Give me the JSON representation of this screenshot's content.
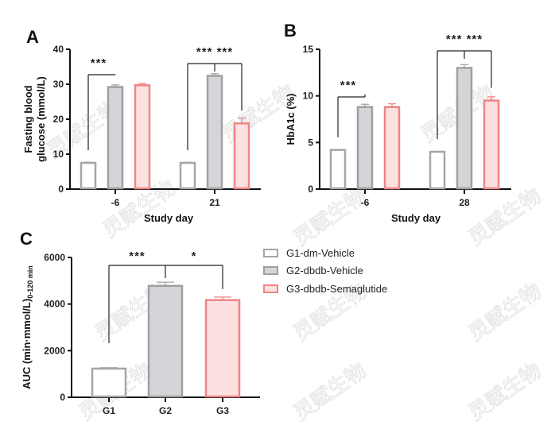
{
  "legend": {
    "items": [
      {
        "label": "G1-dm-Vehicle",
        "fill": "#ffffff",
        "stroke": "#a6a6a6"
      },
      {
        "label": "G2-dbdb-Vehicle",
        "fill": "#d3d5d8",
        "stroke": "#a0a0a0"
      },
      {
        "label": "G3-dbdb-Semaglutide",
        "fill": "#fde0e0",
        "stroke": "#ee8585"
      }
    ]
  },
  "watermark_text": "灵赋生物",
  "chart_data": [
    {
      "panel": "A",
      "type": "bar",
      "title": "",
      "xlabel": "Study day",
      "ylabel": "Fasting blood glucose (mmol/L)",
      "ylabel_lines": [
        "Fasting blood",
        "glucose (mmol/L)"
      ],
      "ylim": [
        0,
        40
      ],
      "yticks": [
        0,
        10,
        20,
        30,
        40
      ],
      "categories": [
        "-6",
        "21"
      ],
      "series": [
        {
          "name": "G1-dm-Vehicle",
          "values": [
            7.5,
            7.5
          ],
          "errors": [
            0.2,
            0.2
          ]
        },
        {
          "name": "G2-dbdb-Vehicle",
          "values": [
            29.2,
            32.4
          ],
          "errors": [
            0.6,
            0.6
          ]
        },
        {
          "name": "G3-dbdb-Semaglutide",
          "values": [
            29.7,
            18.8
          ],
          "errors": [
            0.5,
            1.5
          ]
        }
      ],
      "significance": [
        {
          "category": "-6",
          "from": 0,
          "to": 1,
          "label": "***"
        },
        {
          "category": "21",
          "from": 0,
          "to": 1,
          "label": "***"
        },
        {
          "category": "21",
          "from": 1,
          "to": 2,
          "label": "***"
        }
      ]
    },
    {
      "panel": "B",
      "type": "bar",
      "title": "",
      "xlabel": "Study day",
      "ylabel": "HbA1c (%)",
      "ylabel_lines": [
        "HbA1c (%)"
      ],
      "ylim": [
        0,
        15
      ],
      "yticks": [
        0,
        5,
        10,
        15
      ],
      "categories": [
        "-6",
        "28"
      ],
      "series": [
        {
          "name": "G1-dm-Vehicle",
          "values": [
            4.2,
            4.0
          ],
          "errors": [
            0.05,
            0.05
          ]
        },
        {
          "name": "G2-dbdb-Vehicle",
          "values": [
            8.8,
            13.0
          ],
          "errors": [
            0.3,
            0.35
          ]
        },
        {
          "name": "G3-dbdb-Semaglutide",
          "values": [
            8.8,
            9.5
          ],
          "errors": [
            0.35,
            0.4
          ]
        }
      ],
      "significance": [
        {
          "category": "-6",
          "from": 0,
          "to": 1,
          "label": "***"
        },
        {
          "category": "28",
          "from": 0,
          "to": 1,
          "label": "***"
        },
        {
          "category": "28",
          "from": 1,
          "to": 2,
          "label": "***"
        }
      ]
    },
    {
      "panel": "C",
      "type": "bar",
      "title": "",
      "xlabel": "",
      "ylabel": "AUC (min·mmol/L)0-120 min",
      "ylabel_main": "AUC (min·mmol/L)",
      "ylabel_sub": "0-120 min",
      "ylim": [
        0,
        6000
      ],
      "yticks": [
        0,
        2000,
        4000,
        6000
      ],
      "categories": [
        "G1",
        "G2",
        "G3"
      ],
      "values": [
        1230,
        4780,
        4170
      ],
      "errors": [
        40,
        160,
        130
      ],
      "significance": [
        {
          "from": 0,
          "to": 1,
          "label": "***"
        },
        {
          "from": 1,
          "to": 2,
          "label": "*"
        }
      ]
    }
  ]
}
